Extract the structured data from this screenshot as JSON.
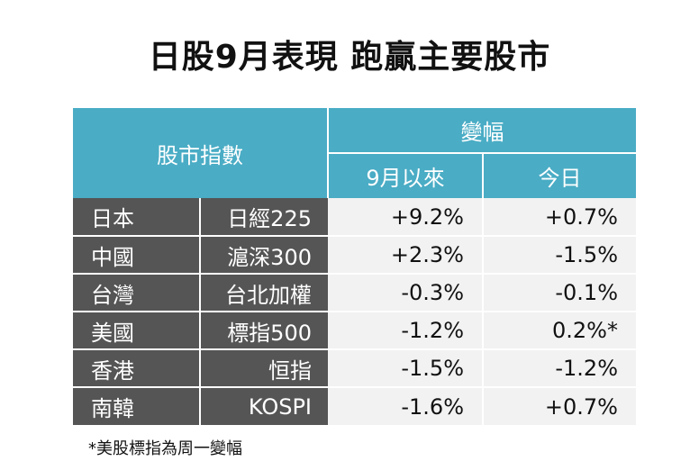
{
  "title": "日股9月表現 跑贏主要股市",
  "table": {
    "header": {
      "index_label": "股市指數",
      "change_label": "變幅",
      "since_sep_label": "9月以來",
      "today_label": "今日"
    },
    "rows": [
      {
        "country": "日本",
        "index": "日經225",
        "since_sep": "+9.2%",
        "today": "+0.7%"
      },
      {
        "country": "中國",
        "index": "滬深300",
        "since_sep": "+2.3%",
        "today": "-1.5%"
      },
      {
        "country": "台灣",
        "index": "台北加權",
        "since_sep": "-0.3%",
        "today": "-0.1%"
      },
      {
        "country": "美國",
        "index": "標指500",
        "since_sep": "-1.2%",
        "today": "0.2%*"
      },
      {
        "country": "香港",
        "index": "恒指",
        "since_sep": "-1.5%",
        "today": "-1.2%"
      },
      {
        "country": "南韓",
        "index": "KOSPI",
        "since_sep": "-1.6%",
        "today": "+0.7%"
      }
    ]
  },
  "footnote": "*美股標指為周一變幅",
  "colors": {
    "header_bg": "#4aacc5",
    "label_bg": "#555555",
    "value_bg": "#f2f2f2"
  }
}
